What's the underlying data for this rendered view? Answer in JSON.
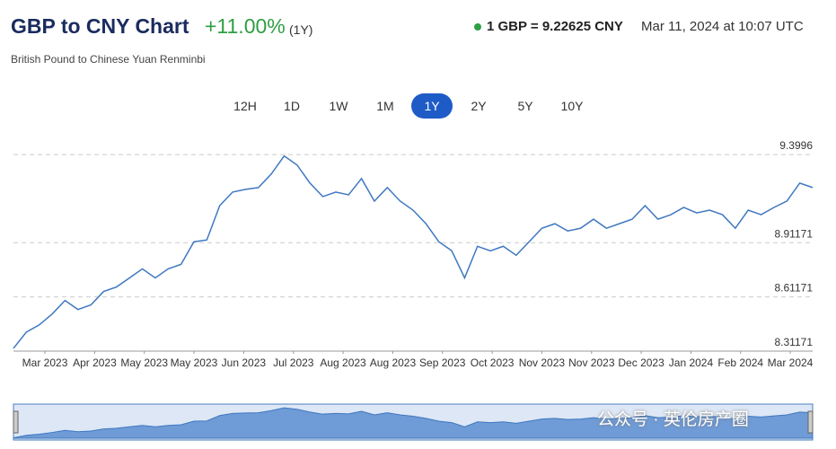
{
  "header": {
    "title": "GBP to CNY Chart",
    "change": "+11.00%",
    "period": "(1Y)",
    "subtitle": "British Pound to Chinese Yuan Renminbi",
    "rate": "1 GBP = 9.22625 CNY",
    "timestamp": "Mar 11, 2024 at 10:07 UTC"
  },
  "ranges": {
    "options": [
      "12H",
      "1D",
      "1W",
      "1M",
      "1Y",
      "2Y",
      "5Y",
      "10Y"
    ],
    "active": 4
  },
  "watermark": "公众号 · 英伦房产圈",
  "chart_data": {
    "type": "line",
    "color": "#3f78c0",
    "grid": true,
    "series": [
      {
        "values": [
          8.327,
          8.417,
          8.457,
          8.517,
          8.592,
          8.542,
          8.567,
          8.642,
          8.667,
          8.717,
          8.767,
          8.717,
          8.767,
          8.792,
          8.917,
          8.927,
          9.117,
          9.192,
          9.207,
          9.217,
          9.292,
          9.392,
          9.342,
          9.242,
          9.167,
          9.192,
          9.177,
          9.267,
          9.142,
          9.217,
          9.142,
          9.092,
          9.017,
          8.917,
          8.867,
          8.717,
          8.892,
          8.867,
          8.892,
          8.842,
          8.917,
          8.992,
          9.017,
          8.977,
          8.992,
          9.042,
          8.992,
          9.017,
          9.042,
          9.117,
          9.042,
          9.067,
          9.107,
          9.077,
          9.092,
          9.067,
          8.992,
          9.092,
          9.067,
          9.107,
          9.142,
          9.242,
          9.217
        ]
      }
    ],
    "xlim": [
      0,
      62
    ],
    "xticks": [
      {
        "value": 2.44,
        "label": "Mar 2023"
      },
      {
        "value": 6.3,
        "label": "Apr 2023"
      },
      {
        "value": 10.15,
        "label": "May 2023"
      },
      {
        "value": 14.0,
        "label": "May 2023"
      },
      {
        "value": 17.86,
        "label": "Jun 2023"
      },
      {
        "value": 21.72,
        "label": "Jul 2023"
      },
      {
        "value": 25.57,
        "label": "Aug 2023"
      },
      {
        "value": 29.43,
        "label": "Aug 2023"
      },
      {
        "value": 33.28,
        "label": "Sep 2023"
      },
      {
        "value": 37.14,
        "label": "Oct 2023"
      },
      {
        "value": 40.99,
        "label": "Nov 2023"
      },
      {
        "value": 44.85,
        "label": "Nov 2023"
      },
      {
        "value": 48.7,
        "label": "Dec 2023"
      },
      {
        "value": 52.56,
        "label": "Jan 2024"
      },
      {
        "value": 56.41,
        "label": "Feb 2024"
      },
      {
        "value": 60.26,
        "label": "Mar 2024"
      }
    ],
    "ylim": [
      8.31171,
      9.46
    ],
    "yticks": [
      8.31171,
      8.61171,
      8.91171,
      9.3996
    ]
  }
}
